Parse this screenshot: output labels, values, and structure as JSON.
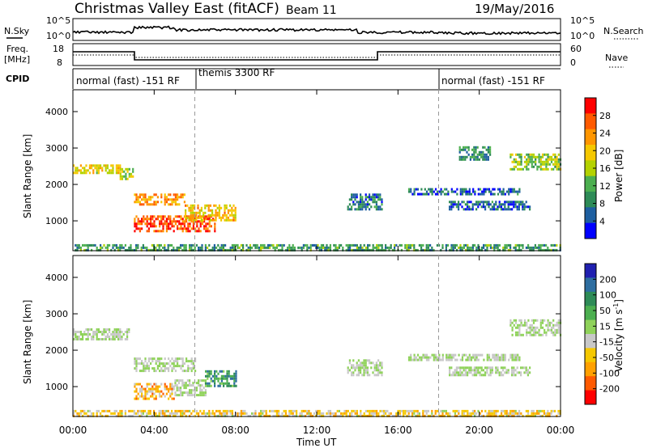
{
  "header": {
    "site": "Christmas Valley East (fitACF)",
    "beam": "Beam 11",
    "date": "19/May/2016"
  },
  "top_panels": {
    "nsky_label": "N.Sky",
    "nsky_ticks": [
      "10^5",
      "10^0"
    ],
    "nsearch_label": "N.Search",
    "nsearch_ticks": [
      "10^5",
      "10^0"
    ],
    "freq_label": "Freq.",
    "freq_unit": "[MHz]",
    "freq_ticks": [
      "18",
      "8"
    ],
    "nave_label": "Nave",
    "nave_ticks": [
      "60",
      "0"
    ],
    "cpid_label": "CPID",
    "cpid_segments": [
      {
        "text": "normal (fast) -151 RF",
        "start_h": 0,
        "end_h": 6
      },
      {
        "text": "themis 3300 RF",
        "start_h": 6,
        "end_h": 18
      },
      {
        "text": "normal (fast) -151 RF",
        "start_h": 18,
        "end_h": 24
      }
    ]
  },
  "chart_data": [
    {
      "type": "heatmap",
      "title": "",
      "xlabel": "",
      "ylabel": "Slant Range [km]",
      "xlim_hours": [
        0,
        24
      ],
      "ylim_km": [
        180,
        4600
      ],
      "y_ticks": [
        "4000",
        "3000",
        "2000",
        "1000"
      ],
      "colorbar_label": "Power [dB]",
      "colorbar_ticks": [
        "28",
        "24",
        "20",
        "16",
        "12",
        "8",
        "4"
      ],
      "colorbar_colors": [
        "#ff0000",
        "#ff5a00",
        "#ff9600",
        "#f5c800",
        "#b4d200",
        "#4caf50",
        "#2e8b57",
        "#1e5fa0",
        "#0000ff"
      ],
      "echo_regions": [
        {
          "x0": 0.0,
          "x1": 2.3,
          "y0": 2300,
          "y1": 2550,
          "level": 0.6
        },
        {
          "x0": 2.3,
          "x1": 3.0,
          "y0": 2150,
          "y1": 2450,
          "level": 0.5
        },
        {
          "x0": 3.0,
          "x1": 5.5,
          "y0": 1450,
          "y1": 1750,
          "level": 0.75
        },
        {
          "x0": 3.0,
          "x1": 7.0,
          "y0": 700,
          "y1": 1150,
          "level": 0.9
        },
        {
          "x0": 5.5,
          "x1": 8.0,
          "y0": 1050,
          "y1": 1450,
          "level": 0.65
        },
        {
          "x0": 13.5,
          "x1": 15.2,
          "y0": 1350,
          "y1": 1750,
          "level": 0.2
        },
        {
          "x0": 16.5,
          "x1": 22.0,
          "y0": 1750,
          "y1": 1900,
          "level": 0.15
        },
        {
          "x0": 18.5,
          "x1": 22.5,
          "y0": 1350,
          "y1": 1550,
          "level": 0.15
        },
        {
          "x0": 19.0,
          "x1": 20.5,
          "y0": 2700,
          "y1": 3050,
          "level": 0.25
        },
        {
          "x0": 21.5,
          "x1": 24.0,
          "y0": 2450,
          "y1": 2850,
          "level": 0.45
        },
        {
          "x0": 0.0,
          "x1": 24.0,
          "y0": 200,
          "y1": 360,
          "level": 0.3
        }
      ]
    },
    {
      "type": "heatmap",
      "title": "",
      "xlabel": "Time UT",
      "ylabel": "Slant Range [km]",
      "xlim_hours": [
        0,
        24
      ],
      "ylim_km": [
        180,
        4600
      ],
      "x_ticks": [
        "00:00",
        "04:00",
        "08:00",
        "12:00",
        "16:00",
        "20:00",
        "00:00"
      ],
      "y_ticks": [
        "4000",
        "3000",
        "2000",
        "1000"
      ],
      "colorbar_label": "Velocity [m s^-1]",
      "colorbar_ticks": [
        "200",
        "100",
        "50",
        "15",
        "-15",
        "-50",
        "-100",
        "-200"
      ],
      "colorbar_colors": [
        "#2020b0",
        "#2e6ea0",
        "#2e8b57",
        "#4caf50",
        "#8fd25a",
        "#c8c8c8",
        "#f5c800",
        "#ffa000",
        "#ff5a00",
        "#ff0000"
      ],
      "echo_regions": [
        {
          "x0": 0.0,
          "x1": 2.8,
          "y0": 2300,
          "y1": 2600,
          "level": 0.5
        },
        {
          "x0": 3.0,
          "x1": 6.0,
          "y0": 1450,
          "y1": 1800,
          "level": 0.5
        },
        {
          "x0": 3.0,
          "x1": 5.0,
          "y0": 700,
          "y1": 1100,
          "level": 0.3
        },
        {
          "x0": 5.0,
          "x1": 6.5,
          "y0": 800,
          "y1": 1200,
          "level": 0.5
        },
        {
          "x0": 6.5,
          "x1": 8.0,
          "y0": 1050,
          "y1": 1450,
          "level": 0.75
        },
        {
          "x0": 13.5,
          "x1": 15.2,
          "y0": 1350,
          "y1": 1750,
          "level": 0.5
        },
        {
          "x0": 16.5,
          "x1": 22.0,
          "y0": 1750,
          "y1": 1900,
          "level": 0.5
        },
        {
          "x0": 18.5,
          "x1": 22.5,
          "y0": 1350,
          "y1": 1550,
          "level": 0.5
        },
        {
          "x0": 21.5,
          "x1": 24.0,
          "y0": 2450,
          "y1": 2850,
          "level": 0.5
        },
        {
          "x0": 0.0,
          "x1": 24.0,
          "y0": 200,
          "y1": 360,
          "level": 0.35
        }
      ]
    }
  ]
}
